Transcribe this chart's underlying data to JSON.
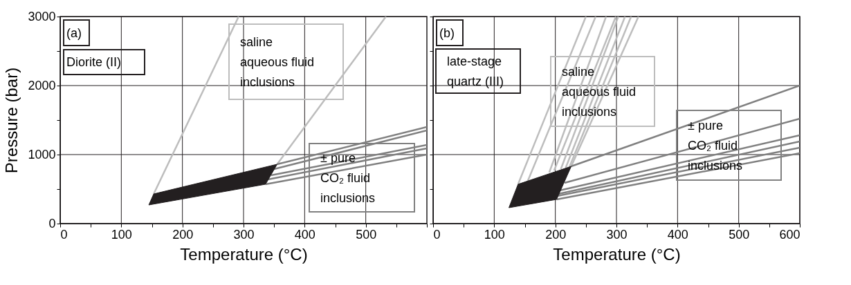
{
  "chart_data": [
    {
      "type": "line",
      "xlabel": "Temperature (°C)",
      "ylabel": "Pressure (bar)",
      "grid": true,
      "xlim": [
        0,
        600
      ],
      "ylim": [
        0,
        3000
      ],
      "xticks": [
        0,
        {
          "value": 50,
          "label": null
        },
        100,
        {
          "value": 150,
          "label": null
        },
        200,
        {
          "value": 250,
          "label": null
        },
        300,
        {
          "value": 350,
          "label": null
        },
        400,
        {
          "value": 450,
          "label": null
        },
        500,
        {
          "value": 550,
          "label": null
        },
        {
          "value": 600,
          "label": null
        }
      ],
      "yticks": [
        0,
        {
          "value": 500,
          "label": null
        },
        1000,
        {
          "value": 1500,
          "label": null
        },
        2000,
        {
          "value": 2500,
          "label": null
        },
        3000
      ],
      "annotations": [
        "(a)",
        "Diorite (II)",
        "saline\naqueous fluid\ninclusions",
        "± pure\nCO₂ fluid\ninclusions"
      ],
      "series": [
        {
          "color": "#bdbdbd",
          "x": [
            153,
            292
          ],
          "values": [
            430,
            3000
          ]
        },
        {
          "color": "#bdbdbd",
          "x": [
            355,
            533
          ],
          "values": [
            860,
            3000
          ]
        },
        {
          "color": "#808080",
          "x": [
            355,
            600
          ],
          "values": [
            860,
            1400
          ]
        },
        {
          "color": "#808080",
          "x": [
            350,
            600
          ],
          "values": [
            790,
            1350
          ]
        },
        {
          "color": "#808080",
          "x": [
            345,
            600
          ],
          "values": [
            700,
            1140
          ]
        },
        {
          "color": "#808080",
          "x": [
            340,
            600
          ],
          "values": [
            640,
            1090
          ]
        },
        {
          "color": "#808080",
          "x": [
            336,
            600
          ],
          "values": [
            570,
            1000
          ]
        },
        {
          "type": "area",
          "color": "#231f20",
          "x": [
            145,
            153,
            355,
            336
          ],
          "values": [
            270,
            430,
            860,
            570
          ]
        }
      ]
    },
    {
      "type": "line",
      "xlabel": "Temperature (°C)",
      "grid": true,
      "tick_labels": "x",
      "xlim": [
        0,
        600
      ],
      "ylim": [
        0,
        3000
      ],
      "xticks": [
        0,
        {
          "value": 50,
          "label": null
        },
        100,
        {
          "value": 150,
          "label": null
        },
        200,
        {
          "value": 250,
          "label": null
        },
        300,
        {
          "value": 350,
          "label": null
        },
        400,
        {
          "value": 450,
          "label": null
        },
        500,
        {
          "value": 550,
          "label": null
        },
        600
      ],
      "yticks": [
        0,
        {
          "value": 500,
          "label": null
        },
        1000,
        {
          "value": 1500,
          "label": null
        },
        2000,
        {
          "value": 2500,
          "label": null
        },
        3000
      ],
      "annotations": [
        "(b)",
        "late-stage\nquartz (III)",
        "saline\naqueous fluid\ninclusions",
        "± pure\nCO₂ fluid\ninclusions"
      ],
      "series": [
        {
          "color": "#bdbdbd",
          "x": [
            139,
            250
          ],
          "values": [
            570,
            3000
          ]
        },
        {
          "color": "#bdbdbd",
          "x": [
            155,
            266
          ],
          "values": [
            620,
            3000
          ]
        },
        {
          "color": "#bdbdbd",
          "x": [
            190,
            283
          ],
          "values": [
            740,
            3000
          ]
        },
        {
          "color": "#bdbdbd",
          "x": [
            198,
            299
          ],
          "values": [
            770,
            3000
          ]
        },
        {
          "color": "#bdbdbd",
          "x": [
            209,
            303
          ],
          "values": [
            790,
            3000
          ]
        },
        {
          "color": "#bdbdbd",
          "x": [
            217,
            314
          ],
          "values": [
            810,
            3000
          ]
        },
        {
          "color": "#bdbdbd",
          "x": [
            223,
            324
          ],
          "values": [
            820,
            3000
          ]
        },
        {
          "color": "#bdbdbd",
          "x": [
            226,
            336
          ],
          "values": [
            830,
            3000
          ]
        },
        {
          "color": "#808080",
          "x": [
            226,
            600
          ],
          "values": [
            830,
            2000
          ]
        },
        {
          "color": "#808080",
          "x": [
            215,
            600
          ],
          "values": [
            590,
            1520
          ]
        },
        {
          "color": "#808080",
          "x": [
            207,
            600
          ],
          "values": [
            480,
            1280
          ]
        },
        {
          "color": "#808080",
          "x": [
            205,
            600
          ],
          "values": [
            430,
            1190
          ]
        },
        {
          "color": "#808080",
          "x": [
            203,
            600
          ],
          "values": [
            400,
            1100
          ]
        },
        {
          "color": "#808080",
          "x": [
            202,
            600
          ],
          "values": [
            350,
            1020
          ]
        },
        {
          "type": "area",
          "color": "#231f20",
          "x": [
            124,
            139,
            226,
            202
          ],
          "values": [
            230,
            570,
            830,
            350
          ]
        }
      ]
    }
  ]
}
